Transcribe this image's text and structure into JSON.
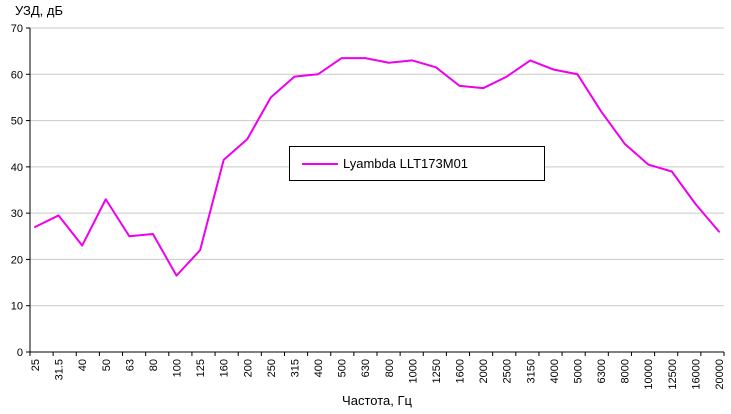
{
  "chart_data": {
    "type": "line",
    "title": "",
    "ylabel": "УЗД, дБ",
    "xlabel": "Частота, Гц",
    "ylim": [
      0,
      70
    ],
    "ytick_step": 10,
    "grid": "horizontal",
    "legend_position": "inside-center",
    "colors": {
      "grid": "#c9c9c9",
      "axis": "#000000",
      "background": "#ffffff"
    },
    "categories": [
      "25",
      "31.5",
      "40",
      "50",
      "63",
      "80",
      "100",
      "125",
      "160",
      "200",
      "250",
      "315",
      "400",
      "500",
      "630",
      "800",
      "1000",
      "1250",
      "1600",
      "2000",
      "2500",
      "3150",
      "4000",
      "5000",
      "6300",
      "8000",
      "10000",
      "12500",
      "16000",
      "20000"
    ],
    "series": [
      {
        "name": "Lyambda LLT173M01",
        "color": "#ee00ee",
        "values": [
          27,
          29.5,
          23,
          33,
          25,
          25.5,
          16.5,
          22,
          41.5,
          46,
          55,
          59.5,
          60,
          63.5,
          63.5,
          62.5,
          63,
          61.5,
          57.5,
          57,
          59.5,
          63,
          61,
          60,
          52,
          45,
          40.5,
          39,
          32,
          26
        ]
      }
    ]
  }
}
